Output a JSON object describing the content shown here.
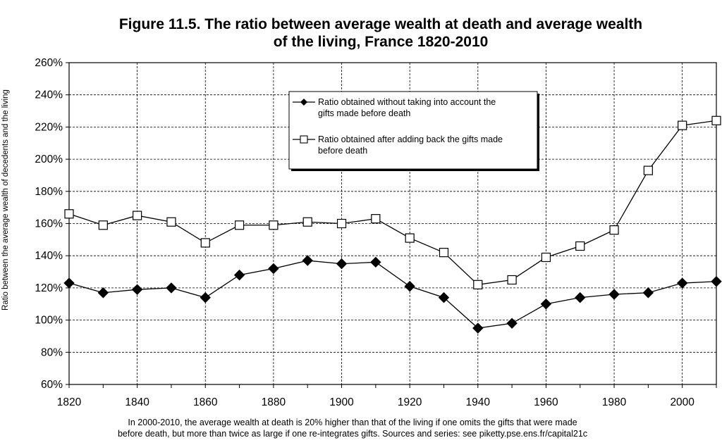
{
  "chart_data": {
    "type": "line",
    "title_line1": "Figure 11.5. The ratio between average wealth at death and average wealth",
    "title_line2": "of the living, France 1820-2010",
    "ylabel": "Ratio between the average wealth of decedents and the living",
    "xlabel": "",
    "x": [
      1820,
      1830,
      1840,
      1850,
      1860,
      1870,
      1880,
      1890,
      1900,
      1910,
      1920,
      1930,
      1940,
      1950,
      1960,
      1970,
      1980,
      1990,
      2000,
      2010
    ],
    "xlim": [
      1820,
      2010
    ],
    "ylim": [
      60,
      260
    ],
    "x_ticks": [
      "1820",
      "1840",
      "1860",
      "1880",
      "1900",
      "1920",
      "1940",
      "1960",
      "1980",
      "2000"
    ],
    "y_ticks": [
      "60%",
      "80%",
      "100%",
      "120%",
      "140%",
      "160%",
      "180%",
      "200%",
      "220%",
      "240%",
      "260%"
    ],
    "grid": "dashed",
    "legend_position": "top-right",
    "series": [
      {
        "name": "Ratio obtained without taking into account the gifts made before death",
        "legend_line1": "Ratio obtained without taking into account the",
        "legend_line2": "gifts made before death",
        "marker": "filled-diamond",
        "values": [
          123,
          117,
          119,
          120,
          114,
          128,
          132,
          137,
          135,
          136,
          121,
          114,
          95,
          98,
          110,
          114,
          116,
          117,
          123,
          124
        ]
      },
      {
        "name": "Ratio obtained after adding back the gifts made before death",
        "legend_line1": "Ratio obtained after adding back the gifts made",
        "legend_line2": "before death",
        "marker": "hollow-square",
        "values": [
          166,
          159,
          165,
          161,
          148,
          159,
          159,
          161,
          160,
          163,
          151,
          142,
          122,
          125,
          139,
          146,
          156,
          193,
          221,
          224
        ]
      }
    ],
    "footnote_line1": "In 2000-2010, the average wealth at death is 20% higher than that of the living if one omits the gifts that were made",
    "footnote_line2": "before death, but more than twice as large if one re-integrates gifts. Sources and series: see piketty.pse.ens.fr/capital21c"
  }
}
